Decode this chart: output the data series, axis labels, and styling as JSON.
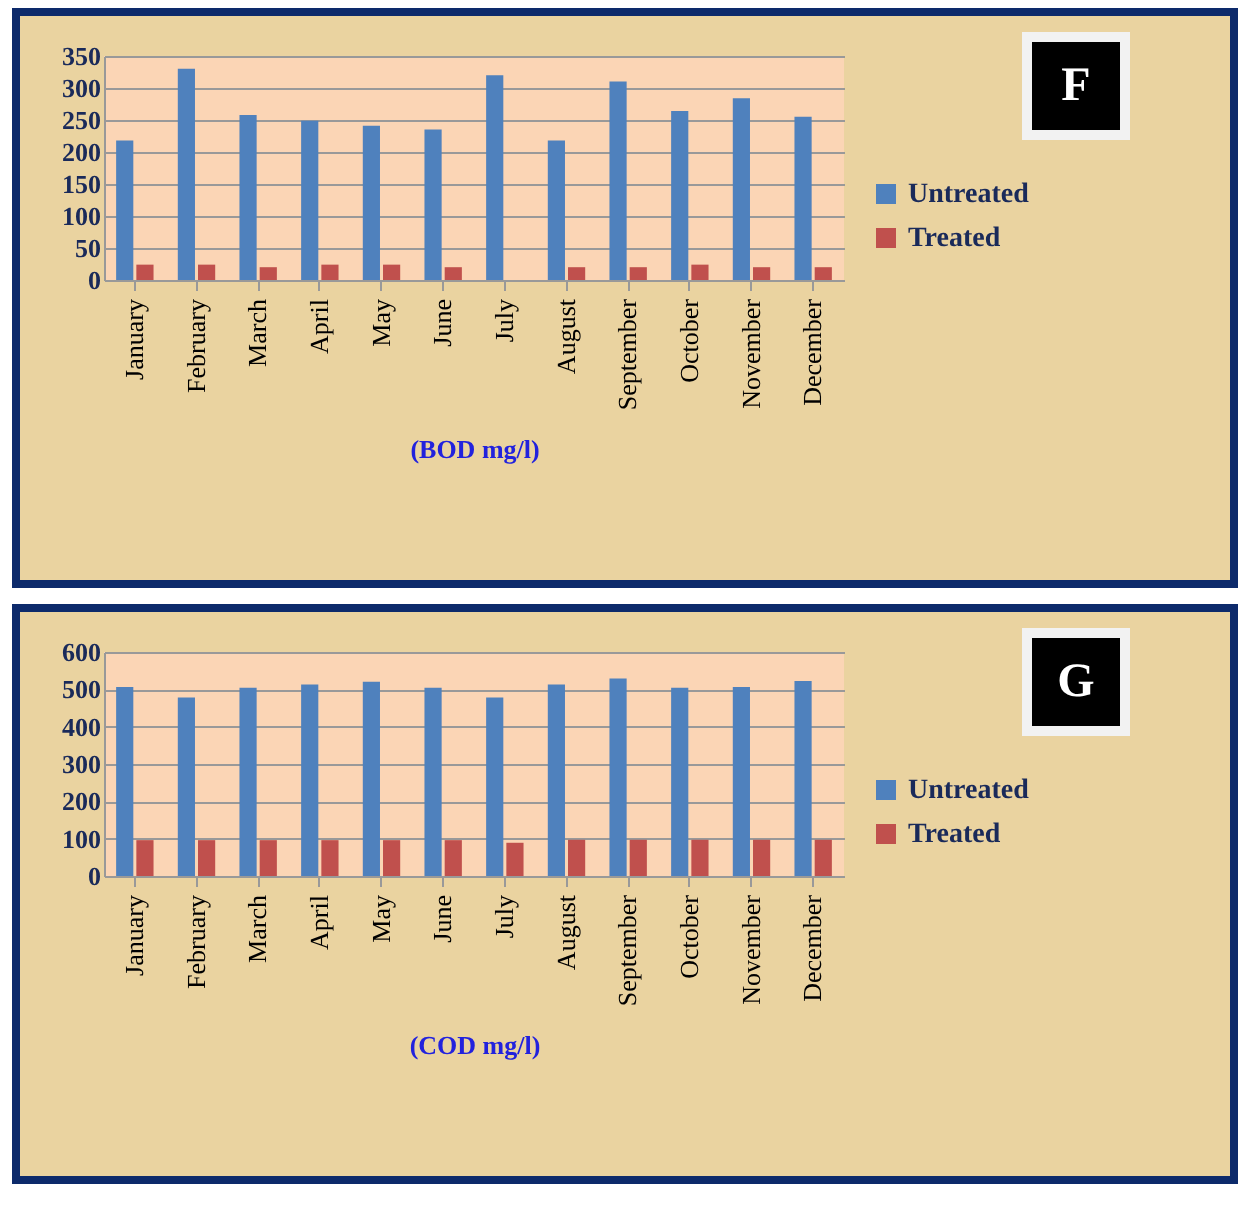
{
  "chart_data": [
    {
      "type": "bar",
      "xlabel": "(BOD mg/l)",
      "categories": [
        "January",
        "February",
        "March",
        "April",
        "May",
        "June",
        "July",
        "August",
        "September",
        "October",
        "November",
        "December"
      ],
      "series": [
        {
          "name": "Untreated",
          "color": "#4f81bd",
          "values": [
            218,
            330,
            258,
            249,
            241,
            235,
            320,
            218,
            310,
            264,
            284,
            255
          ]
        },
        {
          "name": "Treated",
          "color": "#c0504d",
          "values": [
            24,
            24,
            20,
            24,
            24,
            20,
            null,
            20,
            20,
            24,
            20,
            20
          ]
        }
      ],
      "ylim": [
        0,
        350
      ],
      "yticks": [
        0,
        50,
        100,
        150,
        200,
        250,
        300,
        350
      ],
      "grid": "y",
      "legend": "right",
      "annotations": [
        "F"
      ]
    },
    {
      "type": "bar",
      "xlabel": "(COD mg/l)",
      "categories": [
        "January",
        "February",
        "March",
        "April",
        "May",
        "June",
        "July",
        "August",
        "September",
        "October",
        "November",
        "December"
      ],
      "series": [
        {
          "name": "Untreated",
          "color": "#4f81bd",
          "values": [
            506,
            478,
            504,
            513,
            520,
            504,
            478,
            513,
            529,
            504,
            506,
            522
          ]
        },
        {
          "name": "Treated",
          "color": "#c0504d",
          "values": [
            96,
            96,
            96,
            96,
            96,
            96,
            89,
            97,
            97,
            97,
            97,
            97
          ]
        }
      ],
      "ylim": [
        0,
        600
      ],
      "yticks": [
        0,
        100,
        200,
        300,
        400,
        500,
        600
      ],
      "grid": "y",
      "legend": "right",
      "annotations": [
        "G"
      ]
    }
  ]
}
